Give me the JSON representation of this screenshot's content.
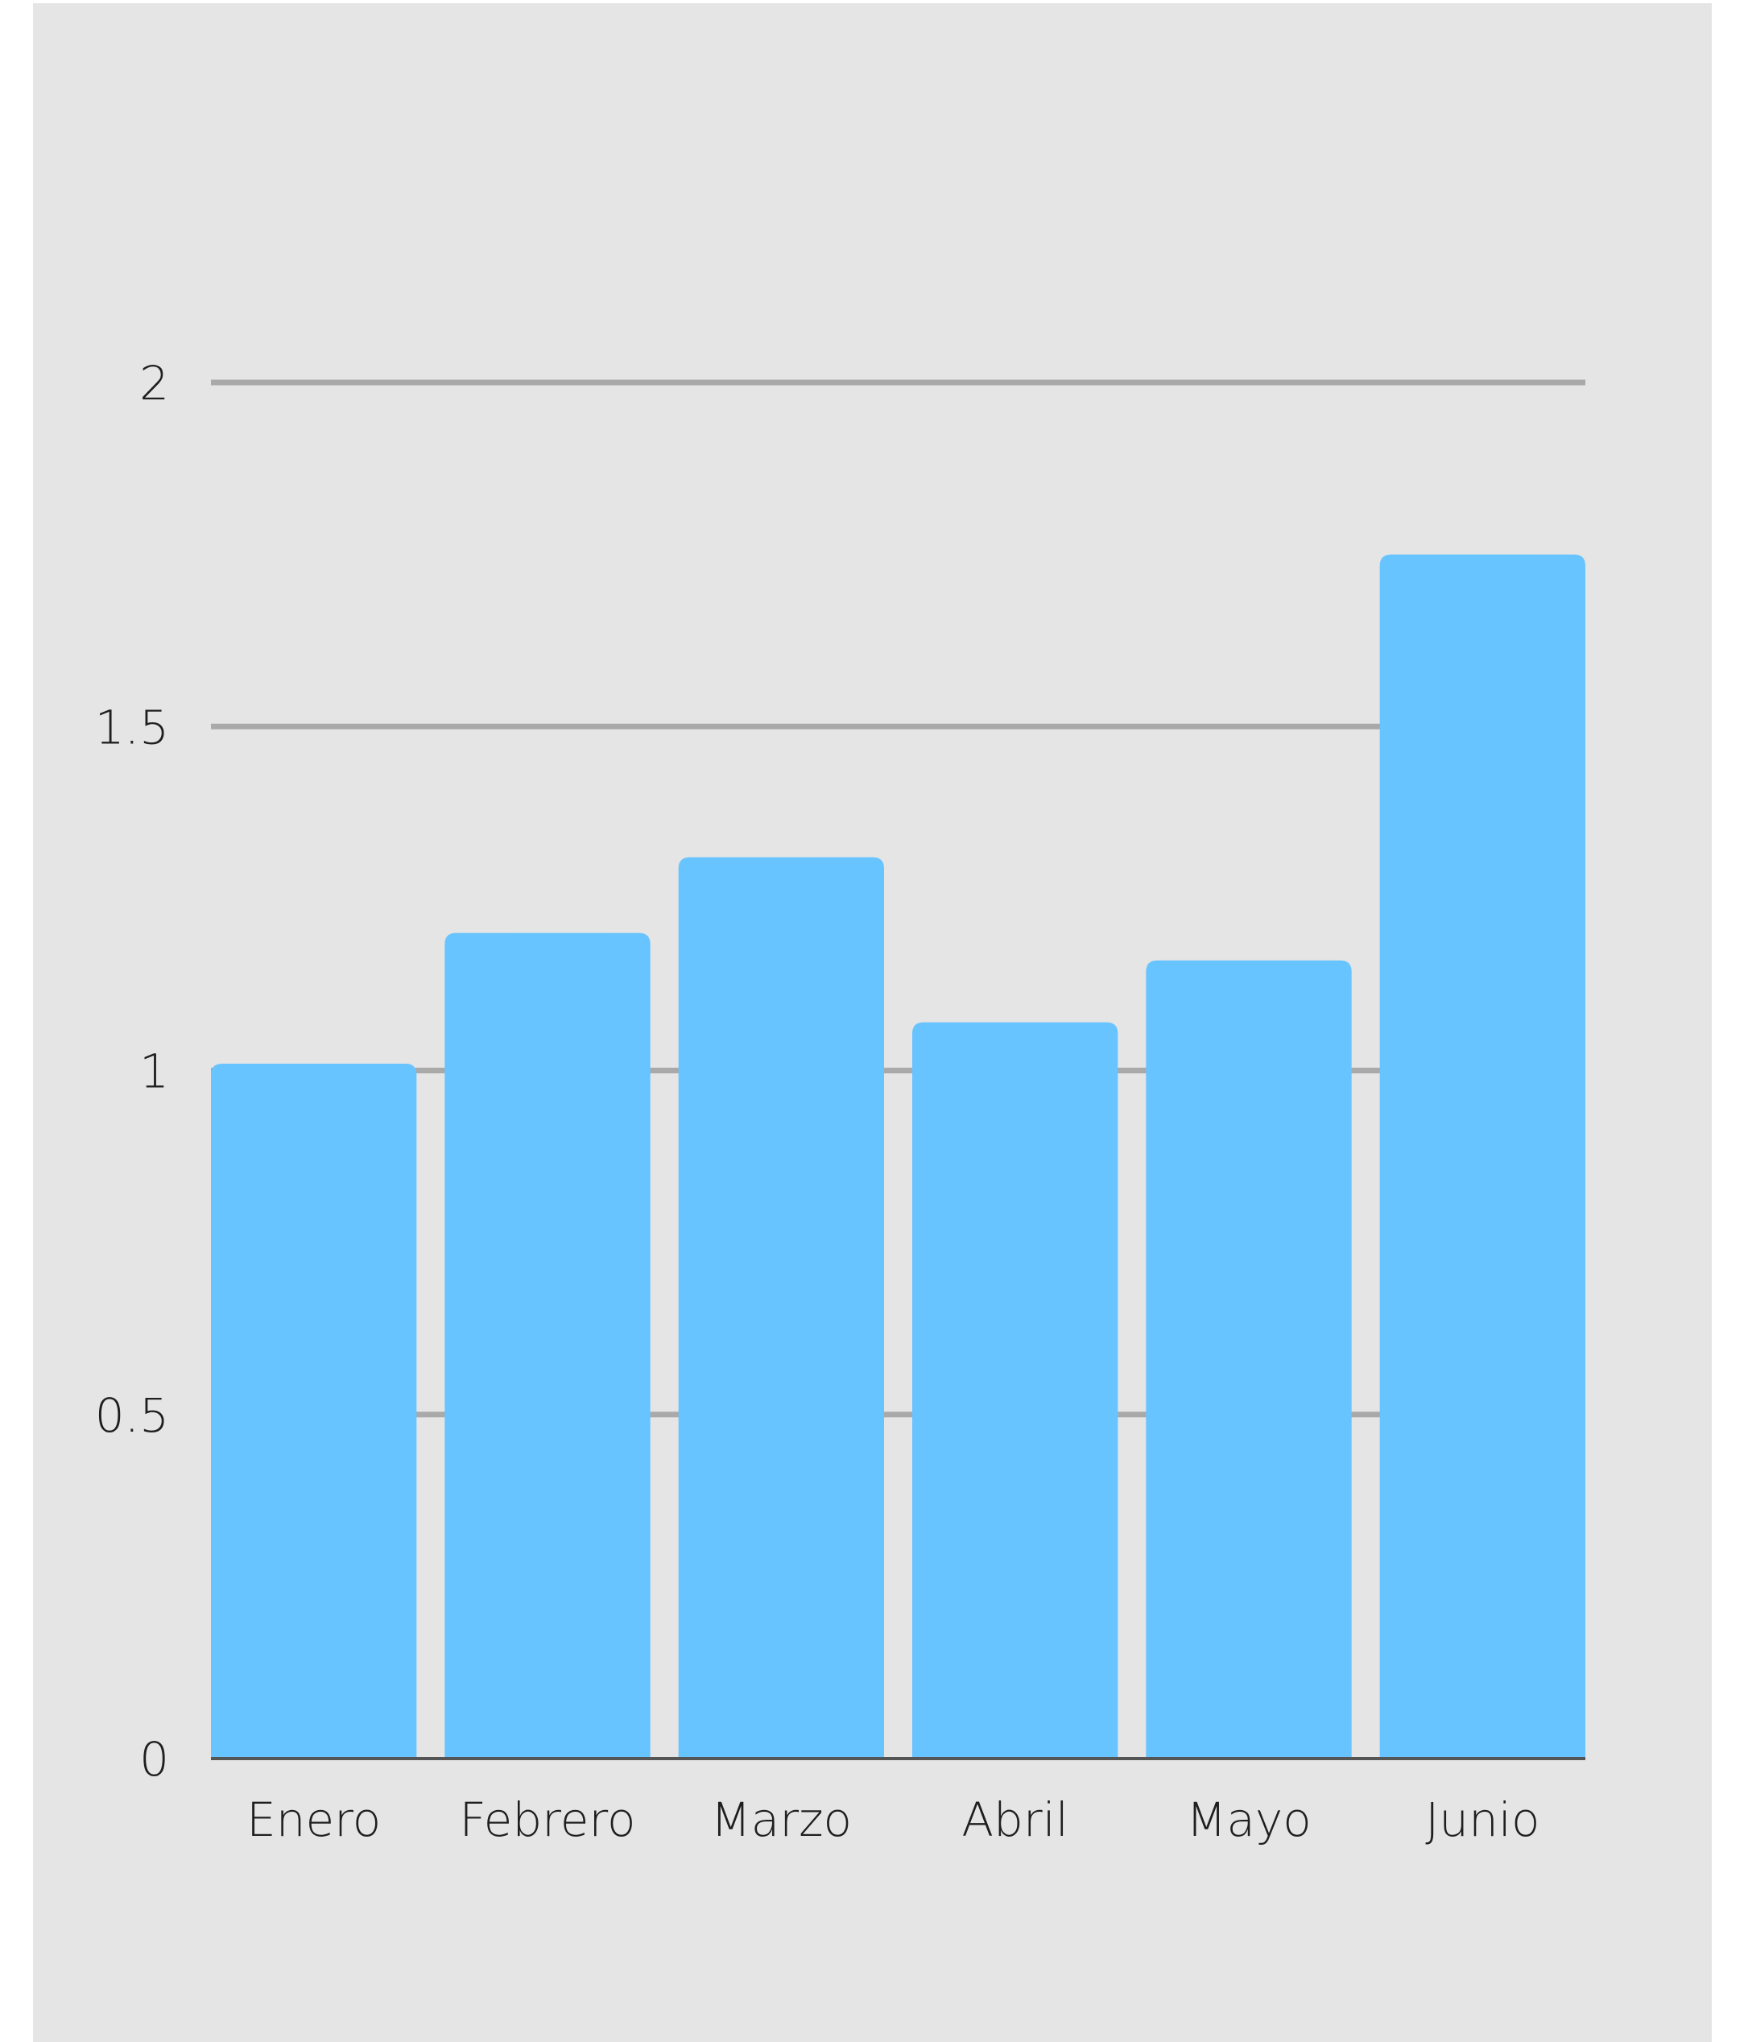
{
  "chart_data": {
    "type": "bar",
    "title": "",
    "xlabel": "",
    "ylabel": "",
    "categories": [
      "Enero",
      "Febrero",
      "Marzo",
      "Abril",
      "Mayo",
      "Junio"
    ],
    "values": [
      1.01,
      1.2,
      1.31,
      1.07,
      1.16,
      1.75
    ],
    "ylim": [
      0,
      2
    ],
    "yticks": [
      "0",
      "0.5",
      "1",
      "1.5",
      "2"
    ],
    "grid": true,
    "colors": {
      "bar": "#68c4fe",
      "background": "#e5e5e6",
      "grid": "#a9a9aa",
      "axis": "#555555"
    }
  }
}
